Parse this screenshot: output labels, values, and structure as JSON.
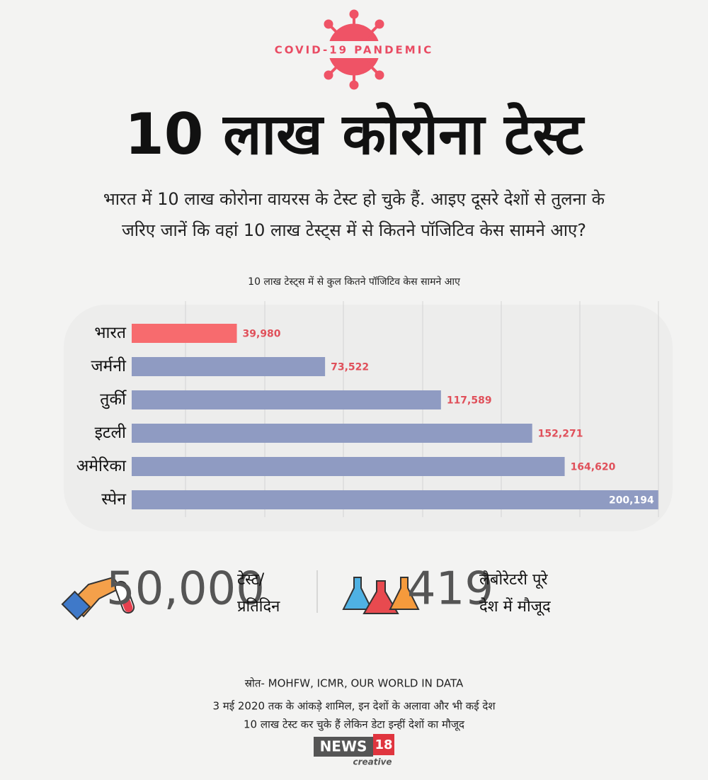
{
  "badge": "COVID-19 PANDEMIC",
  "title": "10 लाख कोरोना टेस्ट",
  "subtitle": [
    "भारत में 10 लाख कोरोना वायरस के टेस्ट हो चुके हैं. आइए दूसरे देशों से तुलना के",
    "जरिए जानें कि वहां 10 लाख टेस्ट्स में से कितने पॉजिटिव केस सामने आए?"
  ],
  "chart_data": {
    "type": "bar",
    "orientation": "horizontal",
    "title": "10 लाख टेस्ट्स में से कुल कितने पॉजिटिव केस सामने आए",
    "categories": [
      "भारत",
      "जर्मनी",
      "तुर्की",
      "इटली",
      "अमेरिका",
      "स्पेन"
    ],
    "values": [
      39980,
      73522,
      117589,
      152271,
      164620,
      200194
    ],
    "value_labels": [
      "39,980",
      "73,522",
      "117,589",
      "152,271",
      "164,620",
      "200,194"
    ],
    "colors": [
      "#f76b6e",
      "#8f9bc2",
      "#8f9bc2",
      "#8f9bc2",
      "#8f9bc2",
      "#8f9bc2"
    ],
    "xlim": [
      0,
      200000
    ]
  },
  "stats": [
    {
      "number": "50,000",
      "label": [
        "टेस्ट/",
        "प्रतिदिन"
      ]
    },
    {
      "number": "419",
      "label": [
        "लैबोरेटरी पूरे",
        "देश में मौजूद"
      ]
    }
  ],
  "source": "स्रोत- MOHFW, ICMR, OUR WORLD IN DATA",
  "notes": [
    "3 मई 2020 तक के आंकड़े शामिल, इन देशों के अलावा और भी कई देश",
    "10 लाख टेस्ट कर चुके हैं लेकिन डेटा इन्हीं देशों का मौजूद"
  ],
  "logo": {
    "name": "NEWS",
    "number": "18",
    "tag": "creative"
  }
}
